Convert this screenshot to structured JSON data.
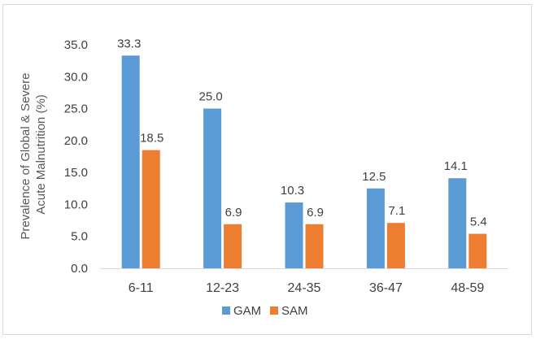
{
  "chart_data": {
    "type": "bar",
    "title": "",
    "xlabel": "",
    "ylabel": "Prevalence of Global & Severe Acute Malnutrition (%)",
    "ylabel_lines": [
      "Prevalence of Global & Severe",
      "Acute Malnutrition (%)"
    ],
    "categories": [
      "6-11",
      "12-23",
      "24-35",
      "36-47",
      "48-59"
    ],
    "series": [
      {
        "name": "GAM",
        "color": "#5b9bd5",
        "values": [
          33.3,
          25.0,
          10.3,
          12.5,
          14.1
        ]
      },
      {
        "name": "SAM",
        "color": "#ed7d31",
        "values": [
          18.5,
          6.9,
          6.9,
          7.1,
          5.4
        ]
      }
    ],
    "ylim": [
      0,
      35
    ],
    "yticks": [
      "0.0",
      "5.0",
      "10.0",
      "15.0",
      "20.0",
      "25.0",
      "30.0",
      "35.0"
    ],
    "grid": false,
    "legend_position": "bottom"
  }
}
